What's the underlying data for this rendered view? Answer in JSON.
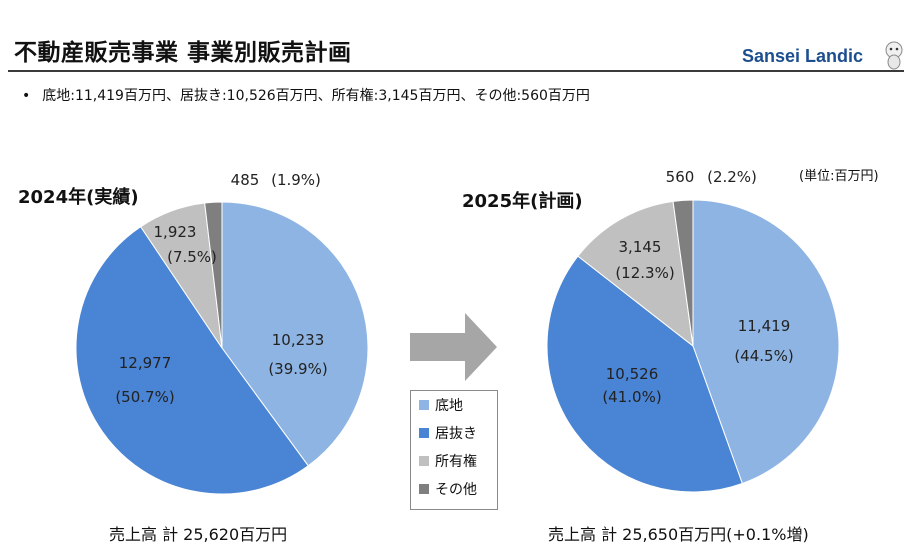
{
  "header": {
    "title": "不動産販売事業 事業別販売計画",
    "brand": "Sansei Landic"
  },
  "summary": {
    "bullet": "•",
    "text": "底地:11,419百万円、居抜き:10,526百万円、所有権:3,145百万円、その他:560百万円"
  },
  "unit_label": "(単位:百万円)",
  "colors": {
    "sokochi": "#8eb4e3",
    "inuki": "#4a84d4",
    "shoyuken": "#c0c0c0",
    "sonota": "#7f7f7f"
  },
  "legend": [
    {
      "label": "底地"
    },
    {
      "label": "居抜き"
    },
    {
      "label": "所有権"
    },
    {
      "label": "その他"
    }
  ],
  "chart_data": [
    {
      "type": "pie",
      "title": "2024年(実績)",
      "categories": [
        "底地",
        "居抜き",
        "所有権",
        "その他"
      ],
      "values": [
        10233,
        12977,
        1923,
        485
      ],
      "value_labels": [
        "10,233",
        "12,977",
        "1,923",
        "485"
      ],
      "percent_labels": [
        "(39.9%)",
        "(50.7%)",
        "(7.5%)",
        "(1.9%)"
      ],
      "total_text": "売上高 計 25,620百万円"
    },
    {
      "type": "pie",
      "title": "2025年(計画)",
      "categories": [
        "底地",
        "居抜き",
        "所有権",
        "その他"
      ],
      "values": [
        11419,
        10526,
        3145,
        560
      ],
      "value_labels": [
        "11,419",
        "10,526",
        "3,145",
        "560"
      ],
      "percent_labels": [
        "(44.5%)",
        "(41.0%)",
        "(12.3%)",
        "(2.2%)"
      ],
      "total_text": "売上高 計 25,650百万円(+0.1%増)"
    }
  ]
}
